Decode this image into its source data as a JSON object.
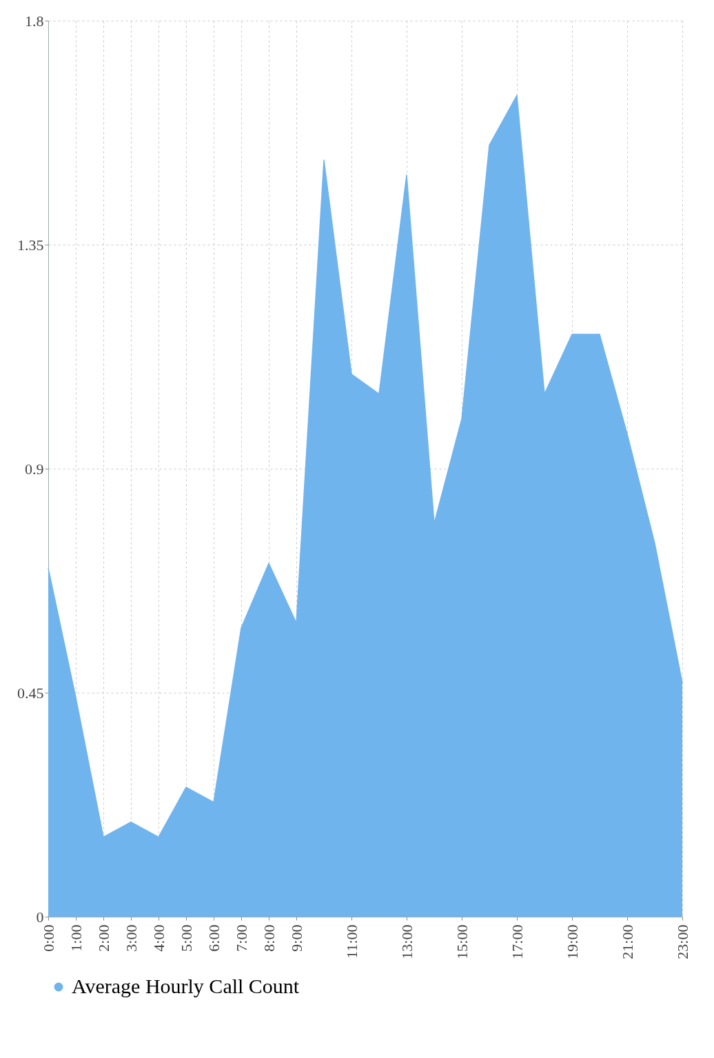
{
  "chart_data": {
    "type": "area",
    "x": [
      0,
      1,
      2,
      3,
      4,
      5,
      6,
      7,
      8,
      9,
      10,
      11,
      12,
      13,
      14,
      15,
      16,
      17,
      18,
      19,
      20,
      21,
      22,
      23
    ],
    "series": [
      {
        "name": "Average Hourly Call Count",
        "color": "#70b4ee",
        "values": [
          0.7,
          0.44,
          0.16,
          0.19,
          0.16,
          0.26,
          0.23,
          0.58,
          0.71,
          0.59,
          1.52,
          1.09,
          1.05,
          1.49,
          0.79,
          1.0,
          1.55,
          1.65,
          1.05,
          1.17,
          1.17,
          0.97,
          0.75,
          0.47
        ]
      }
    ],
    "xlim": [
      0,
      23
    ],
    "xticks": [
      {
        "value": 0,
        "label": "0:00"
      },
      {
        "value": 1,
        "label": "1:00"
      },
      {
        "value": 2,
        "label": "2:00"
      },
      {
        "value": 3,
        "label": "3:00"
      },
      {
        "value": 4,
        "label": "4:00"
      },
      {
        "value": 5,
        "label": "5:00"
      },
      {
        "value": 6,
        "label": "6:00"
      },
      {
        "value": 7,
        "label": "7:00"
      },
      {
        "value": 8,
        "label": "8:00"
      },
      {
        "value": 9,
        "label": "9:00"
      },
      {
        "value": 11,
        "label": "11:00"
      },
      {
        "value": 13,
        "label": "13:00"
      },
      {
        "value": 15,
        "label": "15:00"
      },
      {
        "value": 17,
        "label": "17:00"
      },
      {
        "value": 19,
        "label": "19:00"
      },
      {
        "value": 21,
        "label": "21:00"
      },
      {
        "value": 23,
        "label": "23:00"
      }
    ],
    "ylim": [
      0,
      1.8
    ],
    "yticks": [
      0,
      0.45,
      0.9,
      1.35,
      1.8
    ],
    "grid": true,
    "legend": "bottom"
  }
}
